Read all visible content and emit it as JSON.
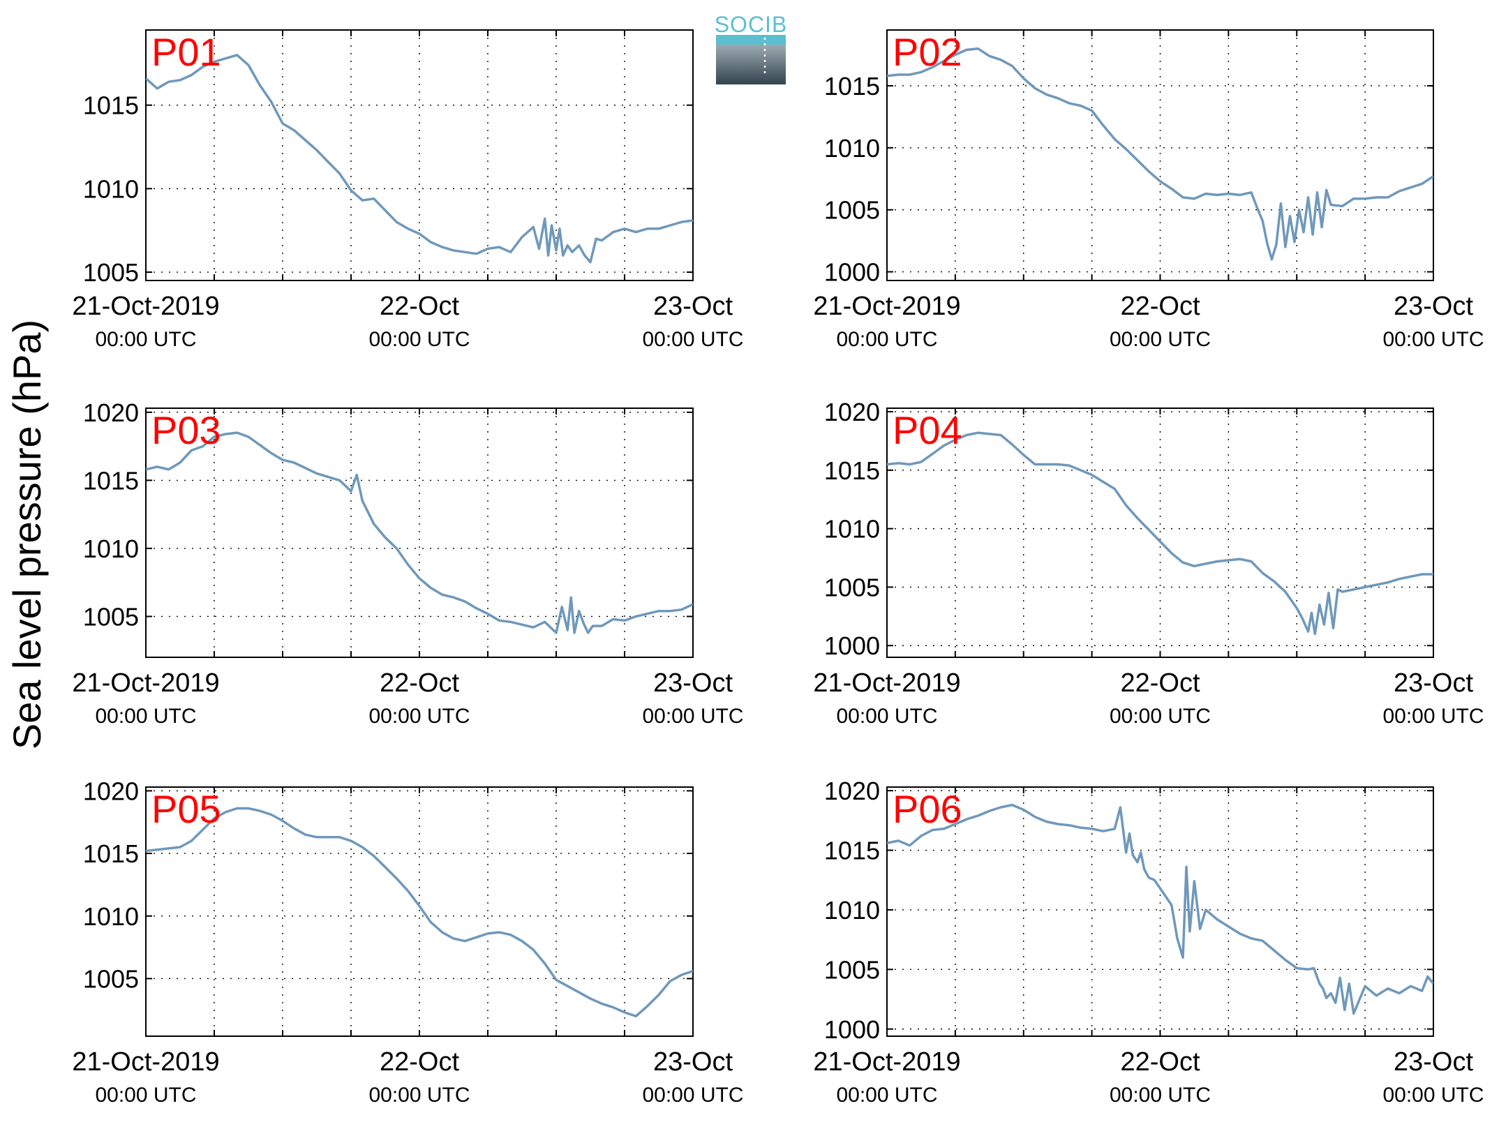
{
  "figure": {
    "ylabel": "Sea level pressure (hPa)",
    "logo_text": "SOCIB",
    "colors": {
      "line": "#6f98bb",
      "panel_label": "#ff0000",
      "axis": "#000000",
      "grid": "#000000",
      "logo_top": "#5bbfd0",
      "logo_bottom": "#33444f"
    }
  },
  "chart_data": [
    {
      "type": "line",
      "panel_label": "P01",
      "x_tick_labels": [
        [
          "21-Oct-2019",
          "00:00 UTC"
        ],
        [
          "22-Oct",
          "00:00 UTC"
        ],
        [
          "23-Oct",
          "00:00 UTC"
        ]
      ],
      "xlim": [
        0,
        48
      ],
      "ylim": [
        1004.5,
        1019.5
      ],
      "yticks": [
        1005,
        1010,
        1015
      ],
      "grid": true,
      "series": [
        {
          "x": [
            0,
            1,
            2,
            3,
            4,
            5,
            6,
            7,
            8,
            9,
            10,
            11,
            12,
            13,
            14,
            15,
            16,
            17,
            18,
            19,
            20,
            21,
            22,
            23,
            24,
            25,
            26,
            27,
            28,
            29,
            30,
            31,
            32,
            33,
            34,
            34.5,
            35,
            35.3,
            35.6,
            36,
            36.3,
            36.6,
            37,
            37.4,
            38,
            38.5,
            39,
            39.5,
            40,
            41,
            42,
            43,
            44,
            45,
            46,
            47,
            48
          ],
          "y": [
            1016.6,
            1016.0,
            1016.4,
            1016.5,
            1016.8,
            1017.3,
            1017.6,
            1017.8,
            1018.0,
            1017.4,
            1016.2,
            1015.2,
            1013.9,
            1013.5,
            1012.9,
            1012.3,
            1011.6,
            1010.9,
            1009.9,
            1009.3,
            1009.4,
            1008.7,
            1008.0,
            1007.6,
            1007.3,
            1006.8,
            1006.5,
            1006.3,
            1006.2,
            1006.1,
            1006.4,
            1006.5,
            1006.2,
            1007.1,
            1007.7,
            1006.4,
            1008.2,
            1006.0,
            1007.8,
            1006.3,
            1007.6,
            1006.0,
            1006.6,
            1006.2,
            1006.6,
            1006.0,
            1005.6,
            1007.0,
            1006.9,
            1007.4,
            1007.6,
            1007.4,
            1007.6,
            1007.6,
            1007.8,
            1008.0,
            1008.1
          ]
        }
      ]
    },
    {
      "type": "line",
      "panel_label": "P02",
      "x_tick_labels": [
        [
          "21-Oct-2019",
          "00:00 UTC"
        ],
        [
          "22-Oct",
          "00:00 UTC"
        ],
        [
          "23-Oct",
          "00:00 UTC"
        ]
      ],
      "xlim": [
        0,
        48
      ],
      "ylim": [
        999.3,
        1019.5
      ],
      "yticks": [
        1000,
        1005,
        1010,
        1015
      ],
      "grid": true,
      "series": [
        {
          "x": [
            0,
            1,
            2,
            3,
            4,
            5,
            6,
            7,
            8,
            9,
            10,
            11,
            12,
            13,
            14,
            15,
            16,
            17,
            18,
            19,
            20,
            21,
            22,
            23,
            24,
            25,
            26,
            27,
            28,
            29,
            30,
            31,
            32,
            32.5,
            33,
            33.4,
            33.8,
            34.2,
            34.6,
            35,
            35.4,
            35.8,
            36.2,
            36.6,
            37,
            37.4,
            37.8,
            38.2,
            38.6,
            39,
            40,
            41,
            42,
            43,
            44,
            45,
            46,
            47,
            48
          ],
          "y": [
            1015.8,
            1015.9,
            1015.9,
            1016.1,
            1016.5,
            1017.0,
            1017.5,
            1017.9,
            1018.0,
            1017.4,
            1017.1,
            1016.6,
            1015.6,
            1014.8,
            1014.3,
            1014.0,
            1013.6,
            1013.4,
            1013.0,
            1011.8,
            1010.7,
            1009.9,
            1009.0,
            1008.1,
            1007.3,
            1006.7,
            1006.0,
            1005.9,
            1006.3,
            1006.2,
            1006.3,
            1006.2,
            1006.4,
            1005.2,
            1004.1,
            1002.3,
            1001.0,
            1002.2,
            1005.5,
            1002.0,
            1004.5,
            1002.4,
            1005.0,
            1003.2,
            1006.0,
            1003.0,
            1006.4,
            1003.6,
            1006.6,
            1005.4,
            1005.3,
            1005.9,
            1005.9,
            1006.0,
            1006.0,
            1006.5,
            1006.8,
            1007.1,
            1007.7
          ]
        }
      ]
    },
    {
      "type": "line",
      "panel_label": "P03",
      "x_tick_labels": [
        [
          "21-Oct-2019",
          "00:00 UTC"
        ],
        [
          "22-Oct",
          "00:00 UTC"
        ],
        [
          "23-Oct",
          "00:00 UTC"
        ]
      ],
      "xlim": [
        0,
        48
      ],
      "ylim": [
        1002.0,
        1020.3
      ],
      "yticks": [
        1005,
        1010,
        1015,
        1020
      ],
      "grid": true,
      "series": [
        {
          "x": [
            0,
            1,
            2,
            3,
            4,
            5,
            6,
            7,
            8,
            9,
            10,
            11,
            12,
            13,
            15,
            17,
            18,
            18.5,
            19,
            20,
            21,
            22,
            23,
            24,
            25,
            26,
            27,
            28,
            29,
            30,
            31,
            32,
            33,
            34,
            35,
            36,
            36.5,
            37,
            37.3,
            37.6,
            38,
            38.4,
            38.8,
            39.2,
            40,
            41,
            42,
            43,
            44,
            45,
            46,
            47,
            48
          ],
          "y": [
            1015.8,
            1016.0,
            1015.8,
            1016.3,
            1017.2,
            1017.5,
            1018.2,
            1018.4,
            1018.5,
            1018.2,
            1017.6,
            1017.0,
            1016.5,
            1016.3,
            1015.5,
            1015.0,
            1014.2,
            1015.4,
            1013.5,
            1011.8,
            1010.8,
            1010.0,
            1008.8,
            1007.8,
            1007.1,
            1006.6,
            1006.4,
            1006.1,
            1005.6,
            1005.2,
            1004.7,
            1004.6,
            1004.4,
            1004.2,
            1004.6,
            1003.8,
            1005.7,
            1004.0,
            1006.4,
            1003.8,
            1005.4,
            1004.5,
            1003.8,
            1004.3,
            1004.3,
            1004.8,
            1004.7,
            1005.0,
            1005.2,
            1005.4,
            1005.4,
            1005.5,
            1005.9
          ]
        }
      ]
    },
    {
      "type": "line",
      "panel_label": "P04",
      "x_tick_labels": [
        [
          "21-Oct-2019",
          "00:00 UTC"
        ],
        [
          "22-Oct",
          "00:00 UTC"
        ],
        [
          "23-Oct",
          "00:00 UTC"
        ]
      ],
      "xlim": [
        0,
        48
      ],
      "ylim": [
        999.0,
        1020.3
      ],
      "yticks": [
        1000,
        1005,
        1010,
        1015,
        1020
      ],
      "grid": true,
      "series": [
        {
          "x": [
            0,
            1,
            2,
            3,
            4,
            5,
            6,
            7,
            8,
            9,
            10,
            11,
            12,
            13,
            14,
            15,
            16,
            17,
            18,
            19,
            20,
            21,
            22,
            23,
            24,
            25,
            26,
            27,
            28,
            29,
            30,
            31,
            32,
            33,
            34,
            35,
            36,
            36.5,
            37,
            37.3,
            37.6,
            38,
            38.4,
            38.8,
            39.2,
            39.6,
            40,
            41,
            42,
            43,
            44,
            45,
            46,
            47,
            48
          ],
          "y": [
            1015.5,
            1015.6,
            1015.5,
            1015.7,
            1016.4,
            1017.1,
            1017.6,
            1018.0,
            1018.2,
            1018.1,
            1018.0,
            1017.2,
            1016.3,
            1015.5,
            1015.5,
            1015.5,
            1015.4,
            1015.0,
            1014.6,
            1014.0,
            1013.4,
            1012.0,
            1010.9,
            1009.9,
            1008.9,
            1007.9,
            1007.1,
            1006.8,
            1007.0,
            1007.2,
            1007.3,
            1007.4,
            1007.2,
            1006.2,
            1005.5,
            1004.6,
            1003.2,
            1002.3,
            1001.2,
            1002.8,
            1001.0,
            1003.5,
            1001.8,
            1004.5,
            1001.5,
            1004.8,
            1004.6,
            1004.8,
            1005.0,
            1005.2,
            1005.4,
            1005.7,
            1005.9,
            1006.1,
            1006.1
          ]
        }
      ]
    },
    {
      "type": "line",
      "panel_label": "P05",
      "x_tick_labels": [
        [
          "21-Oct-2019",
          "00:00 UTC"
        ],
        [
          "22-Oct",
          "00:00 UTC"
        ],
        [
          "23-Oct",
          "00:00 UTC"
        ]
      ],
      "xlim": [
        0,
        48
      ],
      "ylim": [
        1000.4,
        1020.3
      ],
      "yticks": [
        1005,
        1010,
        1015,
        1020
      ],
      "grid": true,
      "series": [
        {
          "x": [
            0,
            1,
            2,
            3,
            4,
            5,
            6,
            7,
            8,
            9,
            10,
            11,
            12,
            13,
            14,
            15,
            16,
            17,
            18,
            19,
            20,
            21,
            22,
            23,
            24,
            25,
            26,
            27,
            28,
            29,
            30,
            31,
            32,
            33,
            34,
            35,
            36,
            37,
            38,
            39,
            40,
            41,
            42,
            43,
            44,
            45,
            46,
            47,
            48
          ],
          "y": [
            1015.2,
            1015.3,
            1015.4,
            1015.5,
            1016.0,
            1016.9,
            1017.8,
            1018.3,
            1018.6,
            1018.6,
            1018.4,
            1018.1,
            1017.6,
            1017.0,
            1016.5,
            1016.3,
            1016.3,
            1016.3,
            1016.0,
            1015.5,
            1014.8,
            1013.9,
            1013.0,
            1012.0,
            1010.8,
            1009.5,
            1008.7,
            1008.2,
            1008.0,
            1008.3,
            1008.6,
            1008.7,
            1008.5,
            1008.0,
            1007.3,
            1006.2,
            1004.9,
            1004.4,
            1003.9,
            1003.4,
            1003.0,
            1002.7,
            1002.3,
            1002.0,
            1002.8,
            1003.7,
            1004.8,
            1005.3,
            1005.6
          ]
        }
      ]
    },
    {
      "type": "line",
      "panel_label": "P06",
      "x_tick_labels": [
        [
          "21-Oct-2019",
          "00:00 UTC"
        ],
        [
          "22-Oct",
          "00:00 UTC"
        ],
        [
          "23-Oct",
          "00:00 UTC"
        ]
      ],
      "xlim": [
        0,
        48
      ],
      "ylim": [
        999.4,
        1020.3
      ],
      "yticks": [
        1000,
        1005,
        1010,
        1015,
        1020
      ],
      "grid": true,
      "series": [
        {
          "x": [
            0,
            1,
            2,
            3,
            4,
            5,
            6,
            7,
            8,
            9,
            10,
            11,
            12,
            13,
            14,
            15,
            16,
            17,
            18,
            19,
            20,
            20.5,
            21,
            21.3,
            21.6,
            22,
            22.3,
            22.6,
            23,
            23.5,
            24,
            25,
            25.5,
            26,
            26.3,
            26.6,
            27,
            27.5,
            28,
            29,
            30,
            31,
            32,
            33,
            34,
            35,
            36,
            37,
            37.5,
            38,
            38.3,
            38.6,
            39,
            39.4,
            39.8,
            40.2,
            40.6,
            41,
            42,
            43,
            44,
            45,
            46,
            47,
            47.5,
            48
          ],
          "y": [
            1015.6,
            1015.8,
            1015.4,
            1016.2,
            1016.7,
            1016.8,
            1017.2,
            1017.6,
            1017.9,
            1018.3,
            1018.6,
            1018.8,
            1018.4,
            1017.8,
            1017.4,
            1017.2,
            1017.1,
            1016.9,
            1016.8,
            1016.6,
            1016.8,
            1018.6,
            1014.8,
            1016.4,
            1014.6,
            1014.0,
            1014.8,
            1013.4,
            1012.7,
            1012.5,
            1011.8,
            1010.4,
            1007.6,
            1006.0,
            1013.6,
            1008.2,
            1012.4,
            1008.4,
            1010.0,
            1009.2,
            1008.6,
            1008.0,
            1007.6,
            1007.4,
            1006.6,
            1005.8,
            1005.1,
            1005.0,
            1005.1,
            1003.8,
            1003.4,
            1002.6,
            1003.0,
            1002.2,
            1004.3,
            1001.6,
            1003.8,
            1001.3,
            1003.6,
            1002.8,
            1003.4,
            1003.0,
            1003.6,
            1003.2,
            1004.4,
            1003.8
          ]
        }
      ]
    }
  ]
}
